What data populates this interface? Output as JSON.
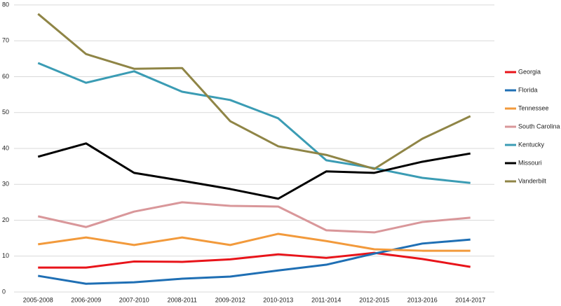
{
  "chart_data": {
    "type": "line",
    "categories": [
      "2005-2008",
      "2006-2009",
      "2007-2010",
      "2008-2011",
      "2009-2012",
      "2010-2013",
      "2011-2014",
      "2012-2015",
      "2013-2016",
      "2014-2017"
    ],
    "series": [
      {
        "name": "Georgia",
        "color": "#e8141a",
        "values": [
          6.8,
          6.8,
          8.5,
          8.4,
          9.1,
          10.5,
          9.5,
          10.9,
          9.2,
          7.0
        ]
      },
      {
        "name": "Florida",
        "color": "#1f6fb4",
        "values": [
          4.5,
          2.3,
          2.7,
          3.7,
          4.3,
          6.0,
          7.6,
          10.7,
          13.5,
          14.6
        ]
      },
      {
        "name": "Tennessee",
        "color": "#f29a3c",
        "values": [
          13.3,
          15.2,
          13.1,
          15.2,
          13.1,
          16.2,
          14.2,
          11.9,
          11.5,
          11.5
        ]
      },
      {
        "name": "South Carolina",
        "color": "#d9979a",
        "values": [
          21.1,
          18.1,
          22.4,
          25.0,
          24.0,
          23.8,
          17.2,
          16.6,
          19.5,
          20.7
        ]
      },
      {
        "name": "Kentucky",
        "color": "#3b9cb4",
        "values": [
          63.8,
          58.3,
          61.5,
          55.8,
          53.5,
          48.4,
          36.7,
          34.5,
          31.8,
          30.4
        ]
      },
      {
        "name": "Missouri",
        "color": "#000000",
        "values": [
          37.7,
          41.4,
          33.2,
          31.0,
          28.7,
          26.0,
          33.6,
          33.2,
          36.3,
          38.6
        ]
      },
      {
        "name": "Vanderbilt",
        "color": "#8f8546",
        "values": [
          77.5,
          66.3,
          62.2,
          62.4,
          47.6,
          40.6,
          38.2,
          34.3,
          42.7,
          49.0
        ]
      }
    ],
    "ylim": [
      0,
      80
    ],
    "yticks": [
      0,
      10,
      20,
      30,
      40,
      50,
      60,
      70,
      80
    ],
    "grid": true,
    "legend": "right"
  }
}
